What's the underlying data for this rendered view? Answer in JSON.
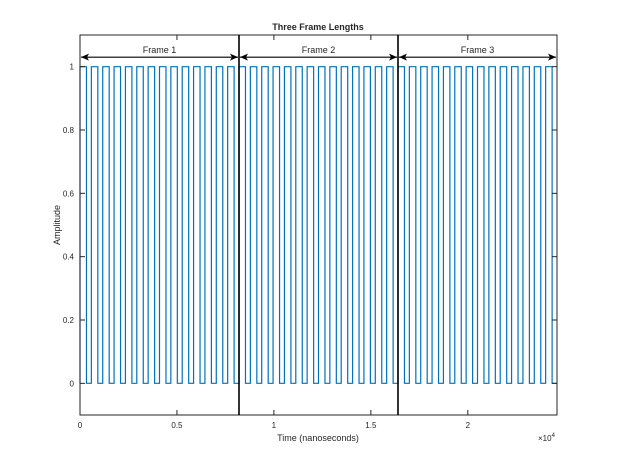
{
  "chart_data": {
    "type": "line",
    "title": "Three Frame Lengths",
    "xlabel": "Time (nanoseconds)",
    "ylabel": "Amplitude",
    "xlim": [
      0,
      24600
    ],
    "ylim": [
      -0.1,
      1.1
    ],
    "x_ticks": [
      0,
      5000,
      10000,
      15000,
      20000
    ],
    "x_tick_labels": [
      "0",
      "0.5",
      "1",
      "1.5",
      "2"
    ],
    "x_exponent_label": "×10",
    "x_exponent_power": "4",
    "y_ticks": [
      0,
      0.2,
      0.4,
      0.6,
      0.8,
      1
    ],
    "y_tick_labels": [
      "0",
      "0.2",
      "0.4",
      "0.6",
      "0.8",
      "1"
    ],
    "grid": false,
    "series_color": "#0072BD",
    "signal": {
      "kind": "square-wave",
      "low": 0,
      "high": 1,
      "pulses_per_frame": 14,
      "duty_cycle": 0.57
    },
    "frame_boundaries": [
      8200,
      16400
    ],
    "frames": [
      {
        "label": "Frame 1",
        "start": 0,
        "end": 8200
      },
      {
        "label": "Frame 2",
        "start": 8200,
        "end": 16400
      },
      {
        "label": "Frame 3",
        "start": 16400,
        "end": 24600
      }
    ],
    "arrow_y": 1.03
  }
}
